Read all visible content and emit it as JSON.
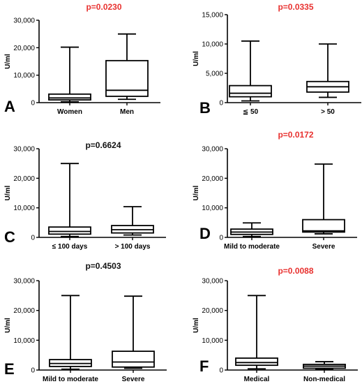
{
  "chart_data": [
    {
      "type": "boxplot",
      "panel_letter": "A",
      "title": "p=0.0230",
      "title_color": "#e8312f",
      "ylabel": "U/ml",
      "ylim": [
        0,
        30000
      ],
      "yticks": [
        0,
        10000,
        20000,
        30000
      ],
      "ytick_labels": [
        "0",
        "10,000",
        "20,000",
        "30,000"
      ],
      "categories": [
        "Women",
        "Men"
      ],
      "boxes": [
        {
          "min": 300,
          "q1": 1000,
          "median": 1700,
          "q3": 3100,
          "max": 20200
        },
        {
          "min": 1200,
          "q1": 2300,
          "median": 4500,
          "q3": 15300,
          "max": 25000
        }
      ]
    },
    {
      "type": "boxplot",
      "panel_letter": "B",
      "title": "p=0.0335",
      "title_color": "#e8312f",
      "ylabel": "U/ml",
      "ylim": [
        0,
        15000
      ],
      "yticks": [
        0,
        5000,
        10000,
        15000
      ],
      "ytick_labels": [
        "0",
        "5,000",
        "10,000",
        "15,000"
      ],
      "categories": [
        "≦ 50",
        "> 50"
      ],
      "boxes": [
        {
          "min": 300,
          "q1": 1000,
          "median": 1600,
          "q3": 2900,
          "max": 10500
        },
        {
          "min": 900,
          "q1": 1800,
          "median": 2700,
          "q3": 3600,
          "max": 10000
        }
      ]
    },
    {
      "type": "boxplot",
      "panel_letter": "C",
      "title": "p=0.6624",
      "title_color": "#111111",
      "ylabel": "U/ml",
      "ylim": [
        0,
        30000
      ],
      "yticks": [
        0,
        10000,
        20000,
        30000
      ],
      "ytick_labels": [
        "0",
        "10,000",
        "20,000",
        "30,000"
      ],
      "categories": [
        "≤ 100 days",
        "> 100 days"
      ],
      "boxes": [
        {
          "min": 300,
          "q1": 1100,
          "median": 2000,
          "q3": 3500,
          "max": 25000
        },
        {
          "min": 800,
          "q1": 1500,
          "median": 2600,
          "q3": 4000,
          "max": 10400
        }
      ]
    },
    {
      "type": "boxplot",
      "panel_letter": "D",
      "title": "p=0.0172",
      "title_color": "#e8312f",
      "ylabel": "U/ml",
      "ylim": [
        0,
        30000
      ],
      "yticks": [
        0,
        10000,
        20000,
        30000
      ],
      "ytick_labels": [
        "0",
        "10,000",
        "20,000",
        "30,000"
      ],
      "categories": [
        "Mild to moderate",
        "Severe"
      ],
      "boxes": [
        {
          "min": 300,
          "q1": 1000,
          "median": 1800,
          "q3": 2800,
          "max": 4900
        },
        {
          "min": 1200,
          "q1": 1800,
          "median": 2200,
          "q3": 6000,
          "max": 24800
        }
      ]
    },
    {
      "type": "boxplot",
      "panel_letter": "E",
      "title": "p=0.4503",
      "title_color": "#111111",
      "ylabel": "U/ml",
      "ylim": [
        0,
        30000
      ],
      "yticks": [
        0,
        10000,
        20000,
        30000
      ],
      "ytick_labels": [
        "0",
        "10,000",
        "20,000",
        "30,000"
      ],
      "categories": [
        "Mild to moderate",
        "Severe"
      ],
      "boxes": [
        {
          "min": 300,
          "q1": 1200,
          "median": 2200,
          "q3": 3500,
          "max": 25000
        },
        {
          "min": 600,
          "q1": 1000,
          "median": 2700,
          "q3": 6300,
          "max": 24800
        }
      ]
    },
    {
      "type": "boxplot",
      "panel_letter": "F",
      "title": "p=0.0088",
      "title_color": "#e8312f",
      "ylabel": "U/ml",
      "ylim": [
        0,
        30000
      ],
      "yticks": [
        0,
        10000,
        20000,
        30000
      ],
      "ytick_labels": [
        "0",
        "10,000",
        "20,000",
        "30,000"
      ],
      "categories": [
        "Medical",
        "Non-medical"
      ],
      "boxes": [
        {
          "min": 400,
          "q1": 1600,
          "median": 2500,
          "q3": 4000,
          "max": 25000
        },
        {
          "min": 200,
          "q1": 600,
          "median": 1300,
          "q3": 1900,
          "max": 2800
        }
      ]
    }
  ]
}
